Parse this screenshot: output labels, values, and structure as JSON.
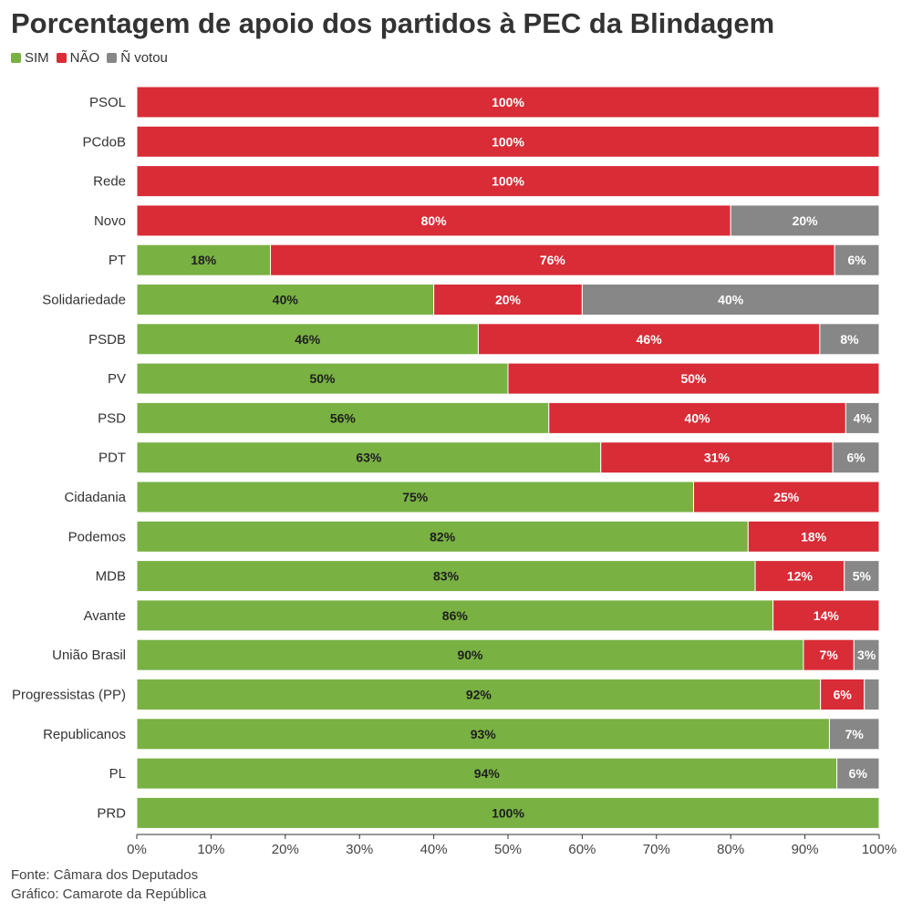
{
  "colors": {
    "sim": "#79b143",
    "nao": "#d82c37",
    "nvotou": "#878787"
  },
  "chart_data": {
    "type": "bar",
    "orientation": "horizontal",
    "stacked": true,
    "title": "Porcentagem de apoio dos partidos à PEC da Blindagem",
    "legend": [
      "SIM",
      "NÃO",
      "Ñ votou"
    ],
    "xlim": [
      0,
      100
    ],
    "x_ticks": [
      "0%",
      "10%",
      "20%",
      "30%",
      "40%",
      "50%",
      "60%",
      "70%",
      "80%",
      "90%",
      "100%"
    ],
    "categories": [
      "PSOL",
      "PCdoB",
      "Rede",
      "Novo",
      "PT",
      "Solidariedade",
      "PSDB",
      "PV",
      "PSD",
      "PDT",
      "Cidadania",
      "Podemos",
      "MDB",
      "Avante",
      "União Brasil",
      "Progressistas (PP)",
      "Republicanos",
      "PL",
      "PRD"
    ],
    "series": [
      {
        "name": "SIM",
        "values": [
          0,
          0,
          0,
          0,
          18,
          40,
          46,
          50,
          55.5,
          62.5,
          75,
          82.35,
          83.3,
          85.7,
          89.8,
          92.1,
          93.3,
          94.3,
          100
        ]
      },
      {
        "name": "NÃO",
        "values": [
          100,
          100,
          100,
          80,
          76,
          20,
          46,
          50,
          40,
          31.25,
          25,
          17.65,
          12,
          14.3,
          6.8,
          5.9,
          0,
          0,
          0
        ]
      },
      {
        "name": "Ñ votou",
        "values": [
          0,
          0,
          0,
          20,
          6,
          40,
          8,
          0,
          4.5,
          6.25,
          0,
          0,
          4.7,
          0,
          3.4,
          2,
          6.7,
          5.7,
          0
        ]
      }
    ],
    "data_labels": [
      [
        "",
        "100%",
        ""
      ],
      [
        "",
        "100%",
        ""
      ],
      [
        "",
        "100%",
        ""
      ],
      [
        "",
        "80%",
        "20%"
      ],
      [
        "18%",
        "76%",
        "6%"
      ],
      [
        "40%",
        "20%",
        "40%"
      ],
      [
        "46%",
        "46%",
        "8%"
      ],
      [
        "50%",
        "50%",
        ""
      ],
      [
        "56%",
        "40%",
        "4%"
      ],
      [
        "63%",
        "31%",
        "6%"
      ],
      [
        "75%",
        "25%",
        ""
      ],
      [
        "82%",
        "18%",
        ""
      ],
      [
        "83%",
        "12%",
        "5%"
      ],
      [
        "86%",
        "14%",
        ""
      ],
      [
        "90%",
        "7%",
        "3%"
      ],
      [
        "92%",
        "6%",
        ""
      ],
      [
        "93%",
        "",
        "7%"
      ],
      [
        "94%",
        "",
        "6%"
      ],
      [
        "100%",
        "",
        ""
      ]
    ]
  },
  "footer": {
    "source": "Fonte: Câmara dos Deputados",
    "credit": "Gráfico: Camarote da República"
  }
}
